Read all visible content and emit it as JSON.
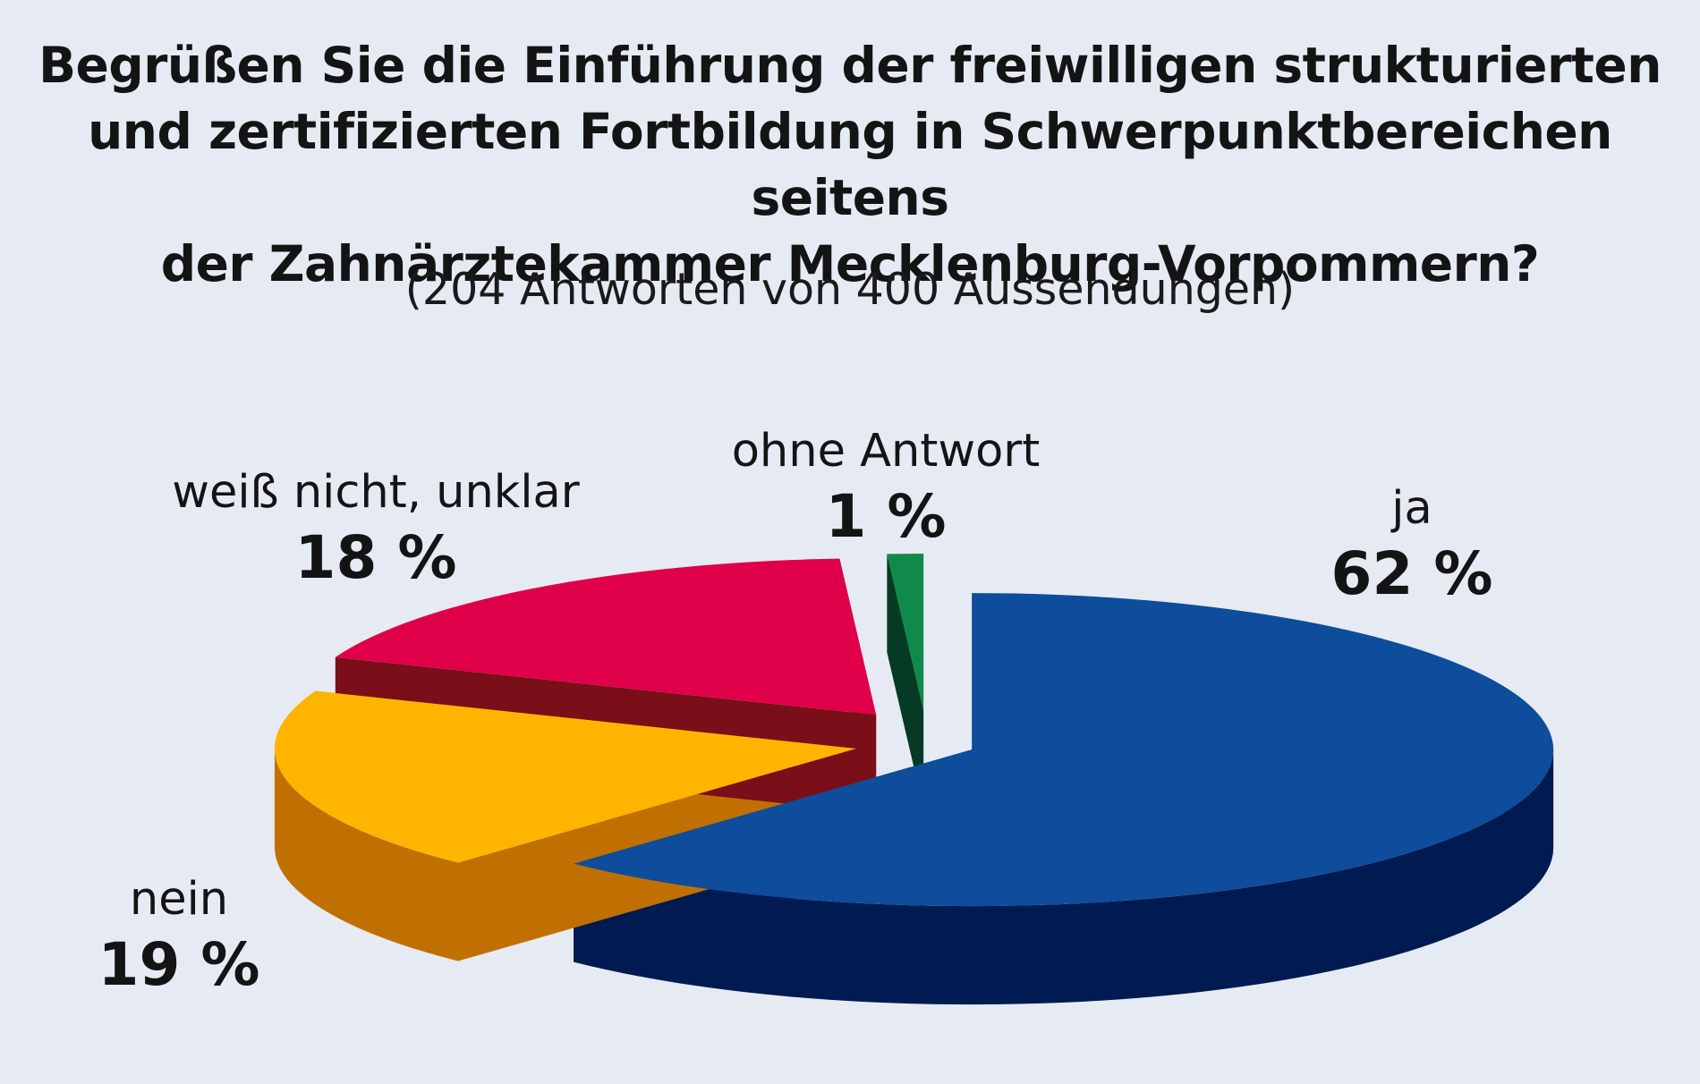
{
  "chart_data": {
    "type": "pie",
    "title_lines": [
      "Begrüßen Sie die Einführung der freiwilligen strukturierten",
      "und zertifizierten Fortbildung in Schwerpunktbereichen seitens",
      "der Zahnärztekammer Mecklenburg-Vorpommern?"
    ],
    "subtitle": "(204 Antworten von 400 Aussendungen)",
    "slices": [
      {
        "label": "ja",
        "value": 62,
        "display": "62 %",
        "color": "#0e4c9c",
        "side": "#001a52"
      },
      {
        "label": "nein",
        "value": 19,
        "display": "19 %",
        "color": "#ffb400",
        "side": "#c07000"
      },
      {
        "label": "weiß nicht, unklar",
        "value": 18,
        "display": "18 %",
        "color": "#e0004a",
        "side": "#7a0f1a"
      },
      {
        "label": "ohne Antwort",
        "value": 1,
        "display": "1 %",
        "color": "#0f8a4a",
        "side": "#073a24"
      }
    ]
  }
}
